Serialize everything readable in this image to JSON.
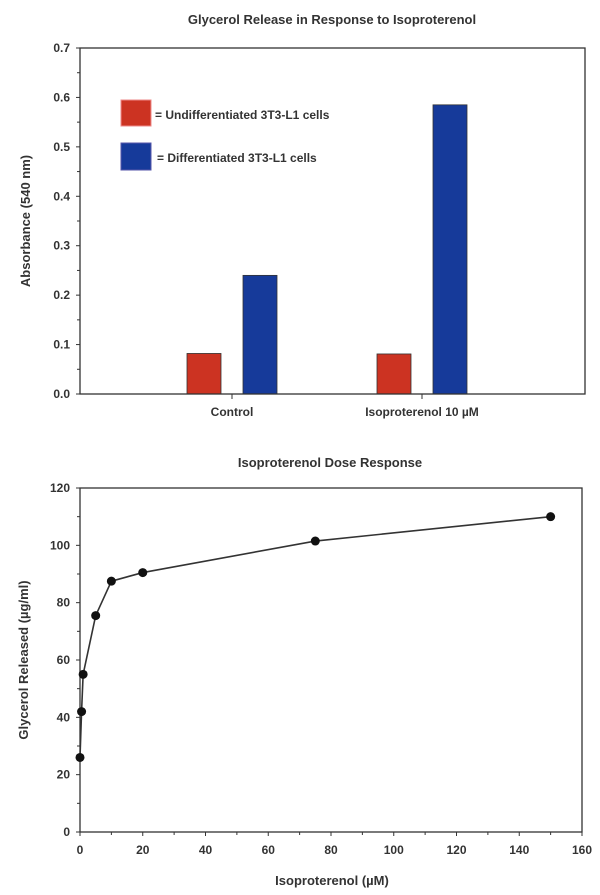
{
  "chart_data": [
    {
      "type": "bar",
      "title": "Glycerol Release in Response to Isoproterenol",
      "xlabel": "",
      "ylabel": "Absorbance (540 nm)",
      "ylim": [
        0,
        0.7
      ],
      "yticks": [
        "0.0",
        "0.1",
        "0.2",
        "0.3",
        "0.4",
        "0.5",
        "0.6",
        "0.7"
      ],
      "categories": [
        "Control",
        "Isoproterenol 10 µM"
      ],
      "series": [
        {
          "name": "= Undifferentiated 3T3-L1 cells",
          "color": "#cc3322",
          "values": [
            0.082,
            0.081
          ]
        },
        {
          "name": "= Differentiated 3T3-L1 cells",
          "color": "#163a9a",
          "values": [
            0.24,
            0.585
          ]
        }
      ],
      "legend": "top-left",
      "grid": false
    },
    {
      "type": "line",
      "title": "Isoproterenol Dose Response",
      "xlabel": "Isoproterenol (µM)",
      "ylabel": "Glycerol Released (µg/ml)",
      "xlim": [
        0,
        160
      ],
      "ylim": [
        0,
        120
      ],
      "xticks": [
        "0",
        "20",
        "40",
        "60",
        "80",
        "100",
        "120",
        "140",
        "160"
      ],
      "yticks": [
        "0",
        "20",
        "40",
        "60",
        "80",
        "100",
        "120"
      ],
      "x": [
        0,
        0.5,
        1,
        5,
        10,
        20,
        75,
        150
      ],
      "y": [
        26,
        42,
        55,
        75.5,
        87.5,
        90.5,
        101.5,
        110
      ],
      "color": "#111111",
      "grid": false
    }
  ]
}
